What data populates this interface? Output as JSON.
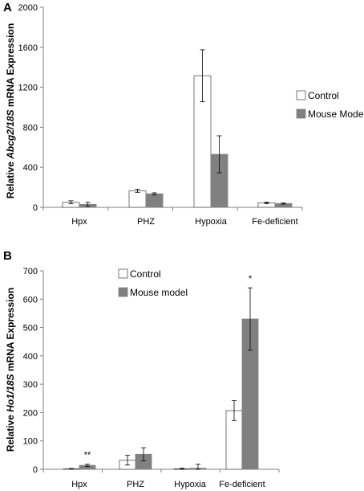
{
  "colors": {
    "control": "#ffffff",
    "model": "#808080",
    "stroke": "#000000",
    "axis": "#7f7f7f"
  },
  "chart_data": [
    {
      "panel": "A",
      "type": "bar",
      "ylabel_parts": [
        "Relative ",
        "Abcg2/18S",
        " mRNA Expression"
      ],
      "categories": [
        "Hpx",
        "PHZ",
        "Hypoxia",
        "Fe-deficient"
      ],
      "ylim": [
        0,
        2000
      ],
      "yticks": [
        0,
        400,
        800,
        1200,
        1600,
        2000
      ],
      "legend_position": "right",
      "series": [
        {
          "name": "Control",
          "values": [
            50,
            165,
            1315,
            45
          ],
          "errors": [
            15,
            15,
            260,
            8
          ]
        },
        {
          "name": "Mouse Model",
          "values": [
            30,
            135,
            530,
            38
          ],
          "errors": [
            20,
            10,
            185,
            6
          ]
        }
      ],
      "annotations": []
    },
    {
      "panel": "B",
      "type": "bar",
      "ylabel_parts": [
        "Relative ",
        "Ho1/18S",
        " mRNA Expression"
      ],
      "categories": [
        "Hpx",
        "PHZ",
        "Hypoxia",
        "Fe-deficient"
      ],
      "ylim": [
        0,
        700
      ],
      "yticks": [
        0,
        100,
        200,
        300,
        400,
        500,
        600,
        700
      ],
      "legend_position": "top-center",
      "series": [
        {
          "name": "Control",
          "values": [
            2,
            32,
            2,
            207
          ],
          "errors": [
            1,
            17,
            2,
            35
          ]
        },
        {
          "name": "Mouse model",
          "values": [
            14,
            53,
            4,
            530
          ],
          "errors": [
            4,
            23,
            14,
            110
          ]
        }
      ],
      "annotations": [
        {
          "category": "Hpx",
          "text": "**"
        },
        {
          "category": "Fe-deficient",
          "text": "*"
        }
      ]
    }
  ]
}
